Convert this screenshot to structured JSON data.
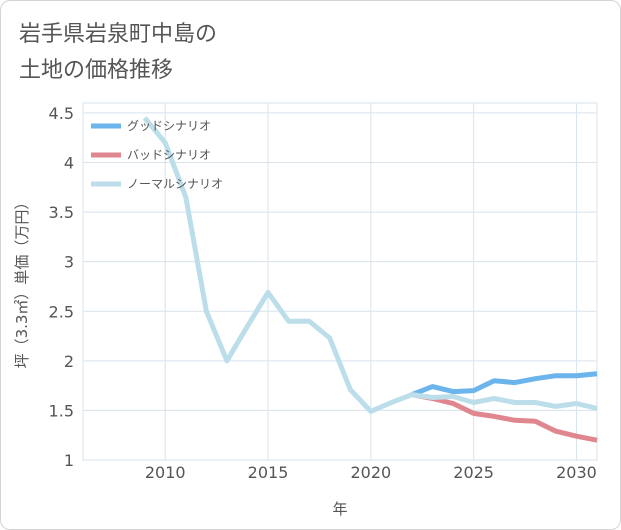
{
  "title_lines": [
    "岩手県岩泉町中島の",
    "土地の価格推移"
  ],
  "chart_data": {
    "type": "line",
    "xlabel": "年",
    "ylabel": "坪（3.3㎡）単価（万円）",
    "xlim": [
      2006,
      2031
    ],
    "ylim": [
      1,
      4.6
    ],
    "xticks": [
      2010,
      2015,
      2020,
      2025,
      2030
    ],
    "yticks": [
      1,
      1.5,
      2,
      2.5,
      3,
      3.5,
      4,
      4.5
    ],
    "ytick_labels": [
      "1",
      "1.5",
      "2",
      "2.5",
      "3",
      "3.5",
      "4",
      "4.5"
    ],
    "grid": true,
    "legend_position": "top-left",
    "series": [
      {
        "name": "グッドシナリオ",
        "color": "#6cb4ec",
        "x": [
          2022,
          2023,
          2024,
          2025,
          2026,
          2027,
          2028,
          2029,
          2030,
          2031
        ],
        "y": [
          1.66,
          1.74,
          1.69,
          1.7,
          1.8,
          1.78,
          1.82,
          1.85,
          1.85,
          1.87
        ]
      },
      {
        "name": "バッドシナリオ",
        "color": "#e0868f",
        "x": [
          2022,
          2023,
          2024,
          2025,
          2026,
          2027,
          2028,
          2029,
          2030,
          2031
        ],
        "y": [
          1.66,
          1.62,
          1.57,
          1.47,
          1.44,
          1.4,
          1.39,
          1.29,
          1.24,
          1.2
        ]
      },
      {
        "name": "ノーマルシナリオ",
        "color": "#bcdeea",
        "x": [
          2009,
          2010,
          2011,
          2012,
          2013,
          2014,
          2015,
          2016,
          2017,
          2018,
          2019,
          2020,
          2021,
          2022,
          2023,
          2024,
          2025,
          2026,
          2027,
          2028,
          2029,
          2030,
          2031
        ],
        "y": [
          4.45,
          4.2,
          3.65,
          2.5,
          2.0,
          2.35,
          2.69,
          2.4,
          2.4,
          2.23,
          1.71,
          1.49,
          1.58,
          1.66,
          1.63,
          1.64,
          1.58,
          1.62,
          1.58,
          1.58,
          1.54,
          1.57,
          1.52
        ]
      }
    ]
  }
}
